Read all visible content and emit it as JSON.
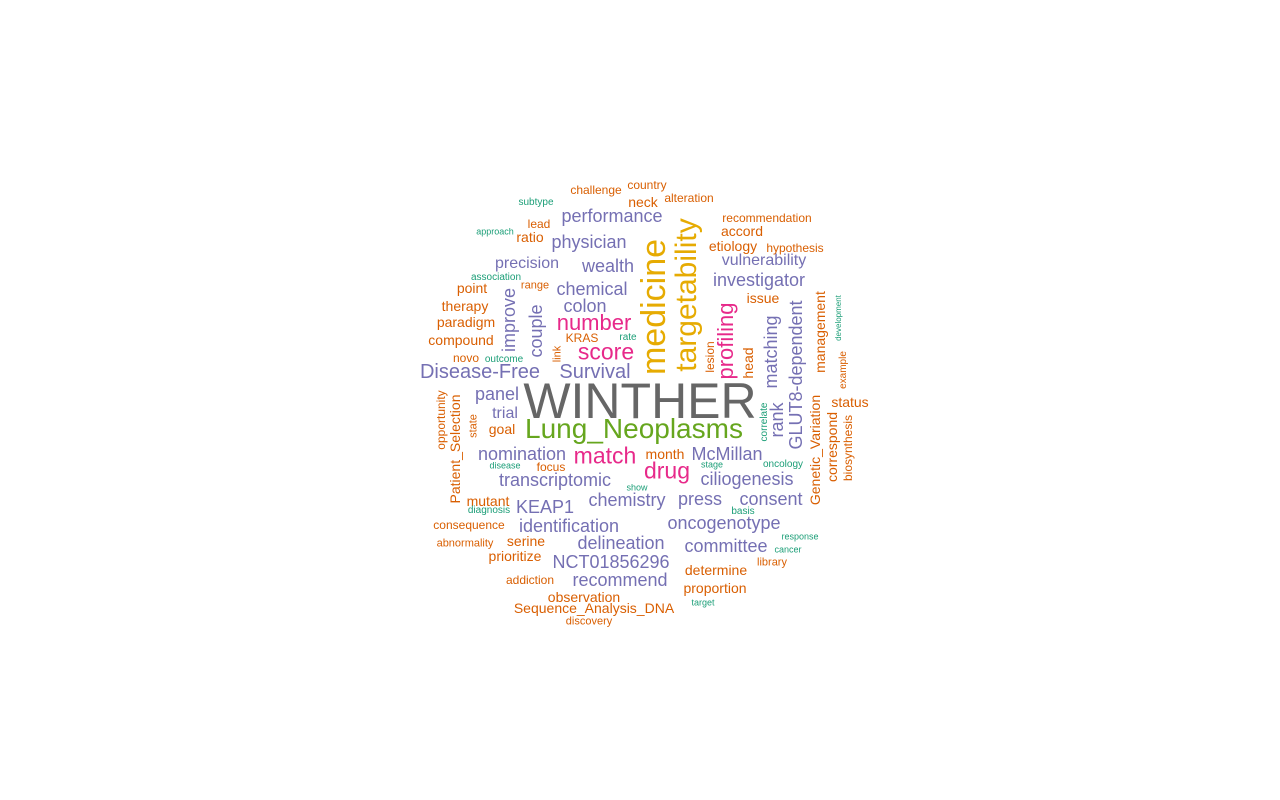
{
  "palette": {
    "grey": "#666666",
    "green": "#66a61e",
    "gold": "#e6ab02",
    "pink": "#e7298a",
    "purple": "#7570b3",
    "orange": "#d95f02",
    "teal": "#1b9e77"
  },
  "words": [
    {
      "text": "WINTHER",
      "color": "grey"
    },
    {
      "text": "Lung_Neoplasms",
      "color": "green"
    },
    {
      "text": "medicine",
      "color": "gold"
    },
    {
      "text": "targetability",
      "color": "gold"
    },
    {
      "text": "match",
      "color": "pink"
    },
    {
      "text": "drug",
      "color": "pink"
    },
    {
      "text": "score",
      "color": "pink"
    },
    {
      "text": "number",
      "color": "pink"
    },
    {
      "text": "profiling",
      "color": "pink"
    },
    {
      "text": "Disease-Free",
      "color": "purple"
    },
    {
      "text": "Survival",
      "color": "purple"
    },
    {
      "text": "performance",
      "color": "purple"
    },
    {
      "text": "physician",
      "color": "purple"
    },
    {
      "text": "wealth",
      "color": "purple"
    },
    {
      "text": "precision",
      "color": "purple"
    },
    {
      "text": "chemical",
      "color": "purple"
    },
    {
      "text": "colon",
      "color": "purple"
    },
    {
      "text": "investigator",
      "color": "purple"
    },
    {
      "text": "vulnerability",
      "color": "purple"
    },
    {
      "text": "improve",
      "color": "purple"
    },
    {
      "text": "couple",
      "color": "purple"
    },
    {
      "text": "panel",
      "color": "purple"
    },
    {
      "text": "trial",
      "color": "purple"
    },
    {
      "text": "nomination",
      "color": "purple"
    },
    {
      "text": "transcriptomic",
      "color": "purple"
    },
    {
      "text": "McMillan",
      "color": "purple"
    },
    {
      "text": "ciliogenesis",
      "color": "purple"
    },
    {
      "text": "KEAP1",
      "color": "purple"
    },
    {
      "text": "chemistry",
      "color": "purple"
    },
    {
      "text": "press",
      "color": "purple"
    },
    {
      "text": "consent",
      "color": "purple"
    },
    {
      "text": "identification",
      "color": "purple"
    },
    {
      "text": "oncogenotype",
      "color": "purple"
    },
    {
      "text": "delineation",
      "color": "purple"
    },
    {
      "text": "committee",
      "color": "purple"
    },
    {
      "text": "NCT01856296",
      "color": "purple"
    },
    {
      "text": "recommend",
      "color": "purple"
    },
    {
      "text": "matching",
      "color": "purple"
    },
    {
      "text": "rank",
      "color": "purple"
    },
    {
      "text": "GLUT8-dependent",
      "color": "purple"
    },
    {
      "text": "challenge",
      "color": "orange"
    },
    {
      "text": "country",
      "color": "orange"
    },
    {
      "text": "neck",
      "color": "orange"
    },
    {
      "text": "alteration",
      "color": "orange"
    },
    {
      "text": "lead",
      "color": "orange"
    },
    {
      "text": "ratio",
      "color": "orange"
    },
    {
      "text": "recommendation",
      "color": "orange"
    },
    {
      "text": "accord",
      "color": "orange"
    },
    {
      "text": "etiology",
      "color": "orange"
    },
    {
      "text": "hypothesis",
      "color": "orange"
    },
    {
      "text": "range",
      "color": "orange"
    },
    {
      "text": "point",
      "color": "orange"
    },
    {
      "text": "therapy",
      "color": "orange"
    },
    {
      "text": "paradigm",
      "color": "orange"
    },
    {
      "text": "compound",
      "color": "orange"
    },
    {
      "text": "KRAS",
      "color": "orange"
    },
    {
      "text": "novo",
      "color": "orange"
    },
    {
      "text": "issue",
      "color": "orange"
    },
    {
      "text": "goal",
      "color": "orange"
    },
    {
      "text": "month",
      "color": "orange"
    },
    {
      "text": "focus",
      "color": "orange"
    },
    {
      "text": "mutant",
      "color": "orange"
    },
    {
      "text": "consequence",
      "color": "orange"
    },
    {
      "text": "abnormality",
      "color": "orange"
    },
    {
      "text": "serine",
      "color": "orange"
    },
    {
      "text": "prioritize",
      "color": "orange"
    },
    {
      "text": "addiction",
      "color": "orange"
    },
    {
      "text": "observation",
      "color": "orange"
    },
    {
      "text": "Sequence_Analysis_DNA",
      "color": "orange"
    },
    {
      "text": "discovery",
      "color": "orange"
    },
    {
      "text": "determine",
      "color": "orange"
    },
    {
      "text": "proportion",
      "color": "orange"
    },
    {
      "text": "library",
      "color": "orange"
    },
    {
      "text": "status",
      "color": "orange"
    },
    {
      "text": "opportunity",
      "color": "orange"
    },
    {
      "text": "Patient_Selection",
      "color": "orange"
    },
    {
      "text": "state",
      "color": "orange"
    },
    {
      "text": "link",
      "color": "orange"
    },
    {
      "text": "lesion",
      "color": "orange"
    },
    {
      "text": "head",
      "color": "orange"
    },
    {
      "text": "management",
      "color": "orange"
    },
    {
      "text": "Genetic_Variation",
      "color": "orange"
    },
    {
      "text": "correspond",
      "color": "orange"
    },
    {
      "text": "biosynthesis",
      "color": "orange"
    },
    {
      "text": "example",
      "color": "orange"
    },
    {
      "text": "subtype",
      "color": "teal"
    },
    {
      "text": "approach",
      "color": "teal"
    },
    {
      "text": "association",
      "color": "teal"
    },
    {
      "text": "rate",
      "color": "teal"
    },
    {
      "text": "outcome",
      "color": "teal"
    },
    {
      "text": "disease",
      "color": "teal"
    },
    {
      "text": "diagnosis",
      "color": "teal"
    },
    {
      "text": "show",
      "color": "teal"
    },
    {
      "text": "stage",
      "color": "teal"
    },
    {
      "text": "oncology",
      "color": "teal"
    },
    {
      "text": "basis",
      "color": "teal"
    },
    {
      "text": "response",
      "color": "teal"
    },
    {
      "text": "cancer",
      "color": "teal"
    },
    {
      "text": "target",
      "color": "teal"
    },
    {
      "text": "correlate",
      "color": "teal"
    },
    {
      "text": "development",
      "color": "teal"
    }
  ]
}
